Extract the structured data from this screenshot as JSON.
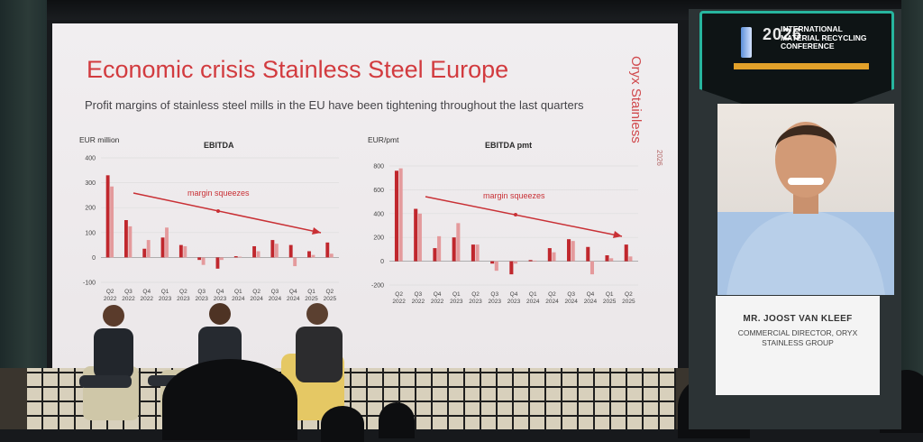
{
  "slide": {
    "title": "Economic crisis Stainless Steel Europe",
    "subtitle": "Profit margins of stainless steel mills in the EU have been tightening throughout the last quarters",
    "brand": "Oryx Stainless",
    "year": "2026"
  },
  "colors": {
    "bar_dark": "#c0272d",
    "bar_light": "#e49a9c",
    "accent": "#d23b3f"
  },
  "chart_data": [
    {
      "type": "bar",
      "title": "EBITDA",
      "ylabel": "EUR million",
      "annotation": "margin squeezes",
      "ylim": [
        -100,
        400
      ],
      "yticks": [
        "400",
        "300",
        "200",
        "100",
        "0",
        "-100"
      ],
      "categories": [
        "Q2 2022",
        "Q3 2022",
        "Q4 2022",
        "Q1 2023",
        "Q2 2023",
        "Q3 2023",
        "Q4 2023",
        "Q1 2024",
        "Q2 2024",
        "Q3 2024",
        "Q4 2024",
        "Q1 2025",
        "Q2 2025"
      ],
      "series": [
        {
          "values": [
            330,
            150,
            35,
            80,
            50,
            -10,
            -45,
            5,
            45,
            70,
            50,
            25,
            60
          ]
        },
        {
          "values": [
            285,
            125,
            70,
            120,
            45,
            -30,
            -10,
            3,
            25,
            55,
            -35,
            10,
            15
          ]
        }
      ]
    },
    {
      "type": "bar",
      "title": "EBITDA pmt",
      "ylabel": "EUR/pmt",
      "annotation": "margin squeezes",
      "ylim": [
        -200,
        800
      ],
      "yticks": [
        "800",
        "600",
        "400",
        "200",
        "0",
        "-200"
      ],
      "categories": [
        "Q2 2022",
        "Q3 2022",
        "Q4 2022",
        "Q1 2023",
        "Q2 2023",
        "Q3 2023",
        "Q4 2023",
        "Q1 2024",
        "Q2 2024",
        "Q3 2024",
        "Q4 2024",
        "Q1 2025",
        "Q2 2025"
      ],
      "series": [
        {
          "values": [
            760,
            440,
            110,
            200,
            140,
            -20,
            -110,
            10,
            110,
            185,
            120,
            50,
            140
          ]
        },
        {
          "values": [
            780,
            400,
            210,
            320,
            140,
            -80,
            -20,
            5,
            75,
            170,
            -110,
            25,
            40
          ]
        }
      ]
    }
  ],
  "speaker": {
    "name": "MR. JOOST VAN KLEEF",
    "role": "COMMERCIAL DIRECTOR, ORYX STAINLESS GROUP"
  },
  "conference": {
    "year": "2026",
    "name": "INTERNATIONAL MATERIAL RECYCLING CONFERENCE"
  }
}
